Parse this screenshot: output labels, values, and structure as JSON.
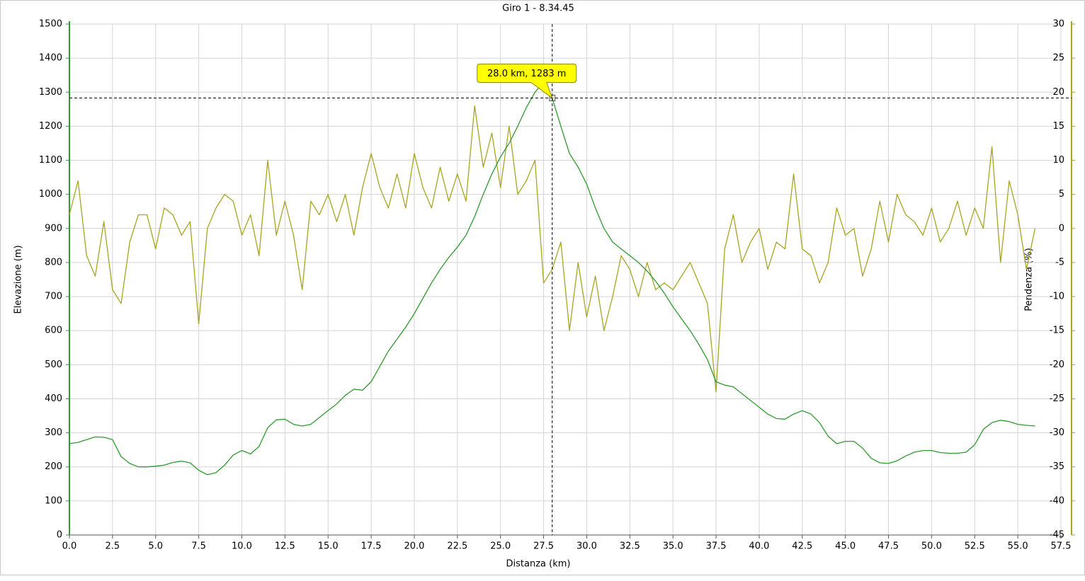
{
  "chart_data": {
    "type": "line",
    "title": "Giro 1 - 8.34.45",
    "x_label": "Distanza (km)",
    "y_label": "Elevazione (m)",
    "y2_label": "Pendenza (%)",
    "xlim": [
      0,
      57.5
    ],
    "ylim": [
      0,
      1500
    ],
    "y2lim": [
      -45,
      30
    ],
    "xticks": [
      {
        "value": 0,
        "label": "0.0"
      },
      2.5,
      {
        "value": 5,
        "label": "5.0"
      },
      7.5,
      {
        "value": 10,
        "label": "10.0"
      },
      12.5,
      {
        "value": 15,
        "label": "15.0"
      },
      17.5,
      {
        "value": 20,
        "label": "20.0"
      },
      22.5,
      {
        "value": 25,
        "label": "25.0"
      },
      27.5,
      {
        "value": 30,
        "label": "30.0"
      },
      32.5,
      {
        "value": 35,
        "label": "35.0"
      },
      37.5,
      {
        "value": 40,
        "label": "40.0"
      },
      42.5,
      {
        "value": 45,
        "label": "45.0"
      },
      47.5,
      {
        "value": 50,
        "label": "50.0"
      },
      52.5,
      {
        "value": 55,
        "label": "55.0"
      },
      57.5
    ],
    "yticks": [
      0,
      100,
      200,
      300,
      400,
      500,
      600,
      700,
      800,
      900,
      1000,
      1100,
      1200,
      1300,
      1400,
      1500
    ],
    "y2ticks": [
      30,
      25,
      20,
      15,
      10,
      5,
      0,
      -5,
      -10,
      -15,
      -20,
      -25,
      -30,
      -35,
      -40,
      -45
    ],
    "grid": true,
    "x": [
      0,
      0.5,
      1,
      1.5,
      2,
      2.5,
      3,
      3.5,
      4,
      4.5,
      5,
      5.5,
      6,
      6.5,
      7,
      7.5,
      8,
      8.5,
      9,
      9.5,
      10,
      10.5,
      11,
      11.5,
      12,
      12.5,
      13,
      13.5,
      14,
      14.5,
      15,
      15.5,
      16,
      16.5,
      17,
      17.5,
      18,
      18.5,
      19,
      19.5,
      20,
      20.5,
      21,
      21.5,
      22,
      22.5,
      23,
      23.5,
      24,
      24.5,
      25,
      25.5,
      26,
      26.5,
      27,
      27.5,
      28,
      28.5,
      29,
      29.5,
      30,
      30.5,
      31,
      31.5,
      32,
      32.5,
      33,
      33.5,
      34,
      34.5,
      35,
      35.5,
      36,
      36.5,
      37,
      37.5,
      38,
      38.5,
      39,
      39.5,
      40,
      40.5,
      41,
      41.5,
      42,
      42.5,
      43,
      43.5,
      44,
      44.5,
      45,
      45.5,
      46,
      46.5,
      47,
      47.5,
      48,
      48.5,
      49,
      49.5,
      50,
      50.5,
      51,
      51.5,
      52,
      52.5,
      53,
      53.5,
      54,
      54.5,
      55,
      55.5,
      56
    ],
    "series": [
      {
        "color": "#2f9a2f",
        "axis": "y",
        "values": [
          268,
          272,
          280,
          288,
          287,
          280,
          230,
          210,
          200,
          200,
          202,
          205,
          213,
          217,
          212,
          190,
          177,
          183,
          205,
          235,
          248,
          238,
          260,
          315,
          338,
          340,
          325,
          320,
          325,
          345,
          365,
          385,
          410,
          428,
          425,
          450,
          495,
          540,
          575,
          610,
          650,
          695,
          740,
          780,
          815,
          845,
          880,
          935,
          1000,
          1060,
          1110,
          1150,
          1200,
          1255,
          1300,
          1330,
          1283,
          1200,
          1120,
          1080,
          1030,
          960,
          900,
          860,
          840,
          820,
          800,
          775,
          745,
          710,
          670,
          635,
          600,
          560,
          515,
          450,
          440,
          435,
          415,
          395,
          375,
          355,
          342,
          340,
          355,
          365,
          355,
          330,
          290,
          268,
          275,
          275,
          255,
          225,
          212,
          210,
          218,
          232,
          243,
          248,
          248,
          242,
          240,
          240,
          243,
          265,
          310,
          330,
          337,
          333,
          325,
          322,
          320
        ]
      },
      {
        "color": "#a8a420",
        "axis": "y2",
        "values": [
          2,
          7,
          -4,
          -7,
          1,
          -9,
          -11,
          -2,
          2,
          2,
          -3,
          3,
          2,
          -1,
          1,
          -14,
          0,
          3,
          5,
          4,
          -1,
          2,
          -4,
          10,
          -1,
          4,
          -1,
          -9,
          4,
          2,
          5,
          1,
          5,
          -1,
          6,
          11,
          6,
          3,
          8,
          3,
          11,
          6,
          3,
          9,
          4,
          8,
          4,
          18,
          9,
          14,
          6,
          15,
          5,
          7,
          10,
          -8,
          -6,
          -2,
          -15,
          -5,
          -13,
          -7,
          -15,
          -10,
          -4,
          -6,
          -10,
          -5,
          -9,
          -8,
          -9,
          -7,
          -5,
          -8,
          -11,
          -24,
          -3,
          2,
          -5,
          -2,
          0,
          -6,
          -2,
          -3,
          8,
          -3,
          -4,
          -8,
          -5,
          3,
          -1,
          0,
          -7,
          -3,
          4,
          -2,
          5,
          2,
          1,
          -1,
          3,
          -2,
          0,
          4,
          -1,
          3,
          0,
          12,
          -5,
          7,
          2,
          -6,
          0
        ]
      }
    ],
    "annotation": {
      "text": "28.0 km, 1283 m",
      "x": 28.0,
      "y": 1283
    }
  }
}
